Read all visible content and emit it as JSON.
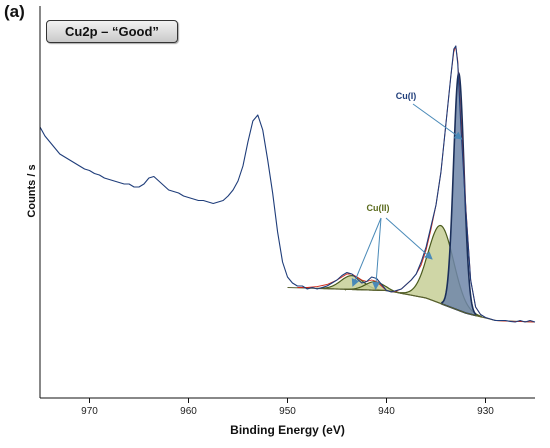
{
  "chart_data": {
    "type": "line",
    "panel_label": "(a)",
    "title": "Cu2p – “Good”",
    "xlabel": "Binding Energy (eV)",
    "ylabel": "Counts / s",
    "xlim": [
      975,
      925
    ],
    "x_reversed": true,
    "xticks": [
      970,
      960,
      950,
      940,
      930
    ],
    "yticks": [],
    "ylim": [
      0,
      100
    ],
    "grid": false,
    "series": [
      {
        "name": "",
        "role": "measured spectrum",
        "color": "#1f3d7a",
        "x": [
          975,
          974.5,
          974,
          973.5,
          973,
          972.5,
          972,
          971.5,
          971,
          970.5,
          970,
          969.5,
          969,
          968.5,
          968,
          967.5,
          967,
          966.5,
          966,
          965.5,
          965,
          964.5,
          964,
          963.5,
          963,
          962.5,
          962,
          961.5,
          961,
          960.5,
          960,
          959.5,
          959,
          958.5,
          958,
          957.5,
          957,
          956.5,
          956,
          955.5,
          955,
          954.5,
          954,
          953.5,
          953,
          952.5,
          952,
          951.5,
          951,
          950.5,
          950,
          949.5,
          949,
          948.5,
          948,
          947.5,
          947,
          946.5,
          946,
          945.5,
          945,
          944.5,
          944,
          943.5,
          943,
          942.5,
          942,
          941.5,
          941,
          940.5,
          940,
          939.5,
          939,
          938.5,
          938,
          937.5,
          937,
          936.5,
          936,
          935.5,
          935,
          934.5,
          934,
          933.5,
          933.2,
          933,
          932.8,
          932.5,
          932,
          931.5,
          931,
          930.5,
          930,
          929.5,
          929,
          928.5,
          928,
          927.5,
          927,
          926.5,
          926,
          925.5,
          925
        ],
        "y": [
          71,
          68,
          66,
          64,
          62,
          61,
          60,
          59,
          58,
          57,
          56.5,
          55.5,
          55,
          54,
          53.5,
          53,
          52.5,
          52,
          52,
          51,
          51,
          52,
          54,
          54.5,
          53,
          51.5,
          50,
          49.5,
          49,
          48,
          47.5,
          47,
          46.5,
          46.5,
          46,
          45.5,
          46,
          46.5,
          48,
          50,
          53,
          58,
          66,
          73,
          75,
          70,
          60,
          49,
          36,
          26,
          21,
          19,
          18,
          18,
          17,
          17.5,
          17,
          17.5,
          18,
          19,
          20,
          21.5,
          22.5,
          22,
          20.5,
          19,
          19.5,
          21,
          20.5,
          18.5,
          16.5,
          16,
          16.5,
          17,
          18.5,
          20,
          22,
          26,
          31,
          38,
          45,
          56,
          72,
          88,
          97,
          98,
          92,
          72,
          44,
          20,
          11,
          8.5,
          7.5,
          7,
          6.5,
          6.5,
          6.5,
          6.2,
          6,
          6.5,
          6,
          6.5,
          6
        ]
      },
      {
        "name": "",
        "role": "envelope fit",
        "color": "#d02818",
        "x": [
          949,
          948,
          947,
          946,
          945,
          944.5,
          944,
          943.5,
          943,
          942.5,
          942,
          941.5,
          941,
          940.5,
          940,
          939.5,
          939,
          938.5,
          938,
          937.5,
          937,
          936.5,
          936,
          935.5,
          935,
          934.5,
          934,
          933.5,
          933.2,
          933,
          932.8,
          932.5,
          932,
          931.5,
          931,
          930.5,
          930,
          929.5,
          929,
          928,
          927,
          926,
          925
        ],
        "y": [
          17.5,
          17.5,
          17.8,
          18.5,
          20,
          21,
          22,
          22,
          21,
          20,
          19.5,
          20,
          19.5,
          18,
          16.5,
          16,
          16.3,
          17,
          18.5,
          20,
          22,
          25,
          30,
          37,
          45,
          56,
          72,
          88,
          96,
          98,
          93,
          74,
          45,
          20,
          11,
          8.5,
          7.5,
          7,
          6.5,
          6.3,
          6.2,
          6.1,
          6
        ]
      }
    ],
    "components": [
      {
        "name": "",
        "state": "Cu(II) satellite",
        "center": 943.5,
        "fwhm": 2.6,
        "height": 4.6,
        "fill": "#c7cf96"
      },
      {
        "name": "",
        "state": "Cu(II) satellite",
        "center": 941.2,
        "fwhm": 2.2,
        "height": 2.8,
        "fill": "#c7cf96"
      },
      {
        "name": "",
        "state": "Cu(II)",
        "center": 934.5,
        "fwhm": 3.0,
        "height": 26,
        "fill": "#c7cf96"
      },
      {
        "name": "",
        "state": "Cu(I)",
        "center": 932.7,
        "fwhm": 1.25,
        "height": 79,
        "fill": "#6f86a9"
      }
    ],
    "background_level": [
      {
        "x": 950,
        "y": 17.5
      },
      {
        "x": 940,
        "y": 16.5
      },
      {
        "x": 936,
        "y": 14
      },
      {
        "x": 932,
        "y": 9
      },
      {
        "x": 929,
        "y": 6.5
      },
      {
        "x": 925,
        "y": 6
      }
    ],
    "annotations": [
      {
        "text": "Cu(I)",
        "arrow_targets": [
          [
            932.4,
            67
          ]
        ]
      },
      {
        "text": "Cu(II)",
        "arrow_targets": [
          [
            943.4,
            18
          ],
          [
            941.1,
            17
          ],
          [
            935.4,
            27
          ]
        ]
      }
    ]
  }
}
